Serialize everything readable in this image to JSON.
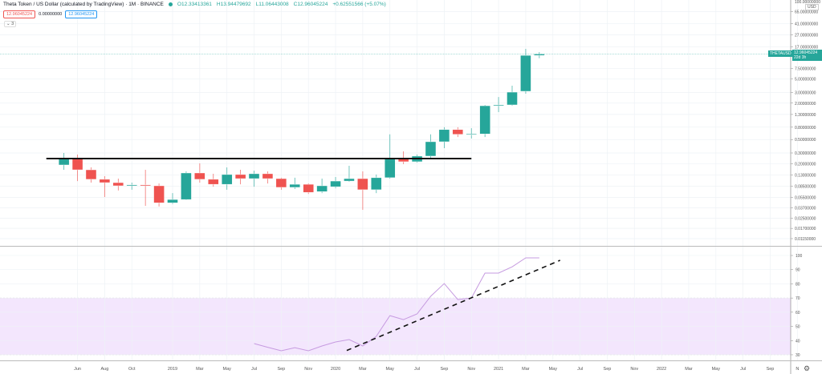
{
  "header": {
    "title": "Theta Token / US Dollar (calculated by TradingView) · 1M · BINANCE",
    "o": "O12.33413361",
    "h": "H13.94479692",
    "l": "L11.06443008",
    "c": "C12.96045224",
    "chg": "+0.62551566 (+5.07%)",
    "bid": "12.96045224",
    "spread": "0.00000000",
    "ask": "12.96045224",
    "indicators_toggle": "⌄ 3"
  },
  "colors": {
    "up": "#26a69a",
    "down": "#ef5350",
    "rsi": "#c69be0",
    "rsi_band": "#f3e6fd"
  },
  "price_axis": {
    "currency": "USD",
    "top_label": "100.00000000",
    "ticks": [
      65,
      41,
      27,
      17,
      7.5,
      5,
      3,
      2,
      1.3,
      0.8,
      0.5,
      0.3,
      0.2,
      0.13,
      0.085,
      0.055,
      0.037,
      0.025,
      0.017,
      0.0115
    ],
    "symbol": "THETAUSD",
    "last_price": "12.96045224",
    "countdown": "22d 3h",
    "scale": "log"
  },
  "rsi_axis": {
    "ticks": [
      100,
      90,
      80,
      70,
      60,
      50,
      40,
      30
    ],
    "band": [
      30,
      70
    ]
  },
  "time_axis": [
    [
      "Jun",
      "2018-06"
    ],
    [
      "Aug",
      "2018-08"
    ],
    [
      "Oct",
      "2018-10"
    ],
    [
      "2019",
      "2019-01"
    ],
    [
      "Mar",
      "2019-03"
    ],
    [
      "May",
      "2019-05"
    ],
    [
      "Jul",
      "2019-07"
    ],
    [
      "Sep",
      "2019-09"
    ],
    [
      "Nov",
      "2019-11"
    ],
    [
      "2020",
      "2020-01"
    ],
    [
      "Mar",
      "2020-03"
    ],
    [
      "May",
      "2020-05"
    ],
    [
      "Jul",
      "2020-07"
    ],
    [
      "Sep",
      "2020-09"
    ],
    [
      "Nov",
      "2020-11"
    ],
    [
      "2021",
      "2021-01"
    ],
    [
      "Mar",
      "2021-03"
    ],
    [
      "May",
      "2021-05"
    ],
    [
      "Jul",
      "2021-07"
    ],
    [
      "Sep",
      "2021-09"
    ],
    [
      "Nov",
      "2021-11"
    ],
    [
      "2022",
      "2022-01"
    ],
    [
      "Mar",
      "2022-03"
    ],
    [
      "May",
      "2022-05"
    ],
    [
      "Jul",
      "2022-07"
    ],
    [
      "Sep",
      "2022-09"
    ],
    [
      "N",
      "2022-11"
    ]
  ],
  "candles": [
    [
      "2018-05",
      0.19,
      0.3,
      0.158,
      0.242
    ],
    [
      "2018-06",
      0.242,
      0.282,
      0.103,
      0.158
    ],
    [
      "2018-07",
      0.158,
      0.173,
      0.097,
      0.11
    ],
    [
      "2018-08",
      0.11,
      0.124,
      0.056,
      0.097
    ],
    [
      "2018-09",
      0.097,
      0.113,
      0.072,
      0.086
    ],
    [
      "2018-10",
      0.086,
      0.097,
      0.074,
      0.089
    ],
    [
      "2018-11",
      0.089,
      0.158,
      0.04,
      0.086
    ],
    [
      "2018-12",
      0.086,
      0.094,
      0.039,
      0.045
    ],
    [
      "2019-01",
      0.045,
      0.065,
      0.043,
      0.051
    ],
    [
      "2019-02",
      0.051,
      0.149,
      0.05,
      0.14
    ],
    [
      "2019-03",
      0.14,
      0.202,
      0.097,
      0.11
    ],
    [
      "2019-04",
      0.11,
      0.136,
      0.083,
      0.091
    ],
    [
      "2019-05",
      0.091,
      0.173,
      0.074,
      0.132
    ],
    [
      "2019-06",
      0.132,
      0.158,
      0.091,
      0.113
    ],
    [
      "2019-07",
      0.113,
      0.153,
      0.083,
      0.136
    ],
    [
      "2019-08",
      0.136,
      0.149,
      0.094,
      0.113
    ],
    [
      "2019-09",
      0.113,
      0.117,
      0.074,
      0.081
    ],
    [
      "2019-10",
      0.081,
      0.117,
      0.076,
      0.091
    ],
    [
      "2019-11",
      0.091,
      0.094,
      0.063,
      0.067
    ],
    [
      "2019-12",
      0.069,
      0.113,
      0.065,
      0.086
    ],
    [
      "2020-01",
      0.083,
      0.12,
      0.078,
      0.103
    ],
    [
      "2020-02",
      0.103,
      0.184,
      0.1,
      0.113
    ],
    [
      "2020-03",
      0.113,
      0.149,
      0.0344,
      0.074
    ],
    [
      "2020-04",
      0.074,
      0.132,
      0.065,
      0.117
    ],
    [
      "2020-05",
      0.117,
      0.61,
      0.113,
      0.242
    ],
    [
      "2020-06",
      0.242,
      0.319,
      0.196,
      0.215
    ],
    [
      "2020-07",
      0.215,
      0.282,
      0.208,
      0.266
    ],
    [
      "2020-08",
      0.266,
      0.61,
      0.25,
      0.46
    ],
    [
      "2020-09",
      0.46,
      0.8,
      0.36,
      0.73
    ],
    [
      "2020-10",
      0.73,
      0.8,
      0.55,
      0.61
    ],
    [
      "2020-11",
      0.61,
      0.77,
      0.52,
      0.62
    ],
    [
      "2020-12",
      0.62,
      1.87,
      0.55,
      1.81
    ],
    [
      "2021-01",
      1.81,
      2.53,
      1.42,
      1.87
    ],
    [
      "2021-02",
      1.87,
      3.88,
      1.81,
      3.04
    ],
    [
      "2021-03",
      3.14,
      15.8,
      2.86,
      12.33
    ],
    [
      "2021-04",
      12.334,
      13.945,
      11.064,
      12.96
    ]
  ],
  "rsi": [
    [
      "2019-07",
      37.9
    ],
    [
      "2019-08",
      35.3
    ],
    [
      "2019-09",
      32.8
    ],
    [
      "2019-10",
      35
    ],
    [
      "2019-11",
      32.8
    ],
    [
      "2019-12",
      36.2
    ],
    [
      "2020-01",
      39
    ],
    [
      "2020-02",
      40.7
    ],
    [
      "2020-03",
      36.2
    ],
    [
      "2020-04",
      43
    ],
    [
      "2020-05",
      57.6
    ],
    [
      "2020-06",
      54.8
    ],
    [
      "2020-07",
      58.8
    ],
    [
      "2020-08",
      71.2
    ],
    [
      "2020-09",
      80.2
    ],
    [
      "2020-10",
      68.9
    ],
    [
      "2020-11",
      70
    ],
    [
      "2020-12",
      87.6
    ],
    [
      "2021-01",
      87.6
    ],
    [
      "2021-02",
      92
    ],
    [
      "2021-03",
      98.3
    ],
    [
      "2021-04",
      98.3
    ]
  ],
  "drawings": {
    "resistance_line": {
      "price": 0.242,
      "from": "2018-04",
      "to": "2020-11"
    },
    "rsi_trendline": {
      "from": [
        "2020-02",
        33
      ],
      "to": [
        "2021-05",
        96.6
      ]
    }
  }
}
